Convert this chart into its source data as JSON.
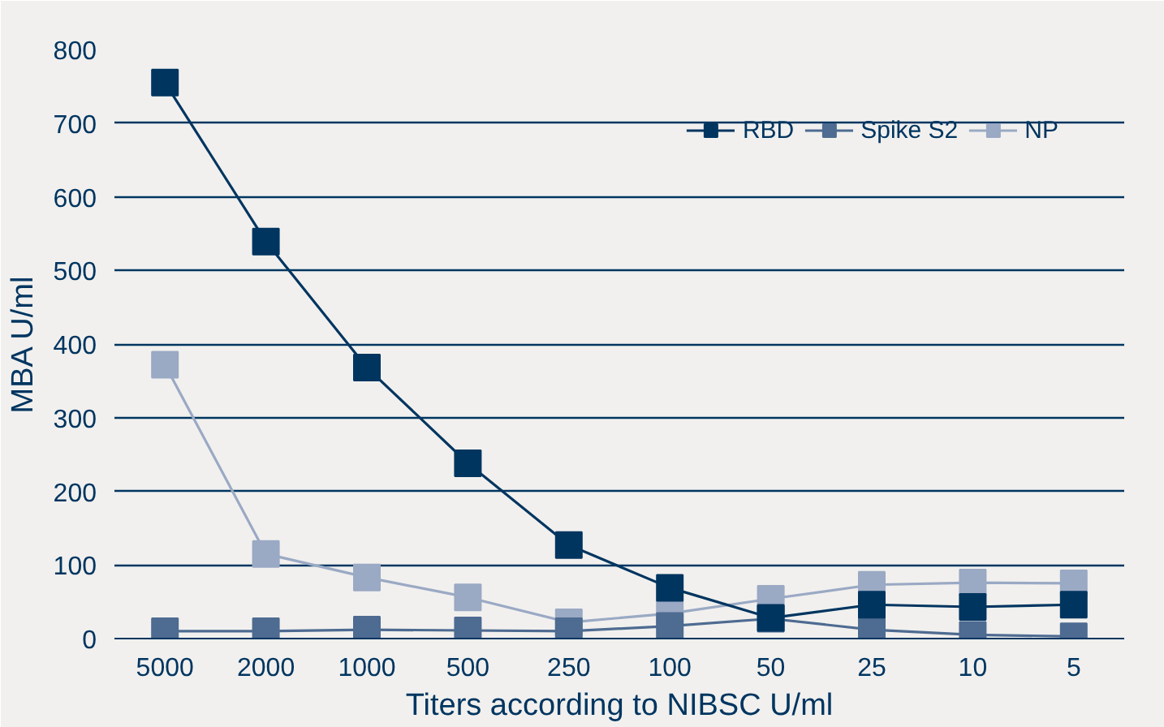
{
  "chart_data": {
    "type": "line",
    "xlabel": "Titers according to NIBSC U/ml",
    "ylabel": "MBA U/ml",
    "categories": [
      "5000",
      "2000",
      "1000",
      "500",
      "250",
      "100",
      "50",
      "25",
      "10",
      "5"
    ],
    "series": [
      {
        "name": "RBD",
        "color": "#003560",
        "values": [
          755,
          539,
          368,
          238,
          127,
          69,
          28,
          46,
          43,
          46
        ]
      },
      {
        "name": "Spike S2",
        "color": "#4e6b91",
        "values": [
          10,
          10,
          12,
          11,
          10,
          17,
          27,
          12,
          5,
          3
        ]
      },
      {
        "name": "NP",
        "color": "#9aa9c4",
        "values": [
          372,
          115,
          83,
          56,
          22,
          34,
          54,
          73,
          76,
          75
        ]
      }
    ],
    "ylim": [
      0,
      800
    ],
    "yticks": [
      0,
      100,
      200,
      300,
      400,
      500,
      600,
      700,
      800
    ],
    "grid": "y",
    "legend": "top right",
    "marker": "square",
    "line_style": "solid"
  }
}
